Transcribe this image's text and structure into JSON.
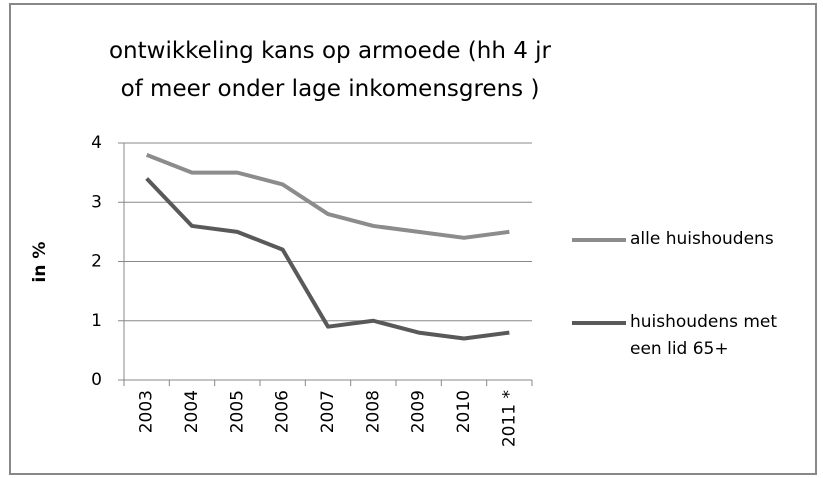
{
  "chart_data": {
    "type": "line",
    "title": "ontwikkeling kans op armoede (hh 4 jr of meer onder lage inkomensgrens )",
    "y_label": "in %",
    "categories": [
      "2003",
      "2004",
      "2005",
      "2006",
      "2007",
      "2008",
      "2009",
      "2010",
      "2011 *"
    ],
    "series": [
      {
        "name": "alle huishoudens",
        "color": "#8c8c8c",
        "values": [
          3.8,
          3.5,
          3.5,
          3.3,
          2.8,
          2.6,
          2.5,
          2.4,
          2.5
        ]
      },
      {
        "name": "huishoudens met een lid 65+",
        "color": "#595959",
        "values": [
          3.4,
          2.6,
          2.5,
          2.2,
          0.9,
          1.0,
          0.8,
          0.7,
          0.8
        ]
      }
    ],
    "ylim": [
      0,
      4
    ],
    "yticks": [
      0,
      1,
      2,
      3,
      4
    ],
    "grid": true
  }
}
